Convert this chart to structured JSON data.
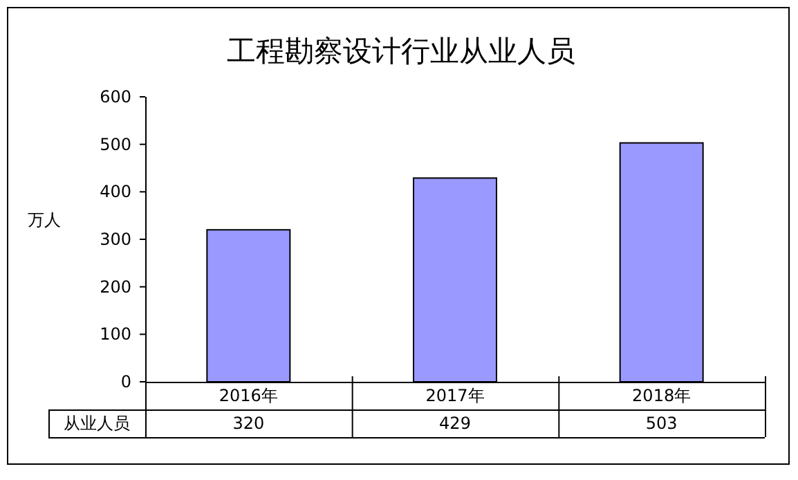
{
  "chart_data": {
    "type": "bar",
    "title": "工程勘察设计行业从业人员",
    "ylabel": "万人",
    "categories": [
      "2016年",
      "2017年",
      "2018年"
    ],
    "series": [
      {
        "name": "从业人员",
        "color": "#9999ff",
        "values": [
          320,
          429,
          503
        ]
      }
    ],
    "ylim": [
      0,
      600
    ],
    "yticks": [
      0,
      100,
      200,
      300,
      400,
      500,
      600
    ],
    "data_labels": true,
    "grid": false
  }
}
